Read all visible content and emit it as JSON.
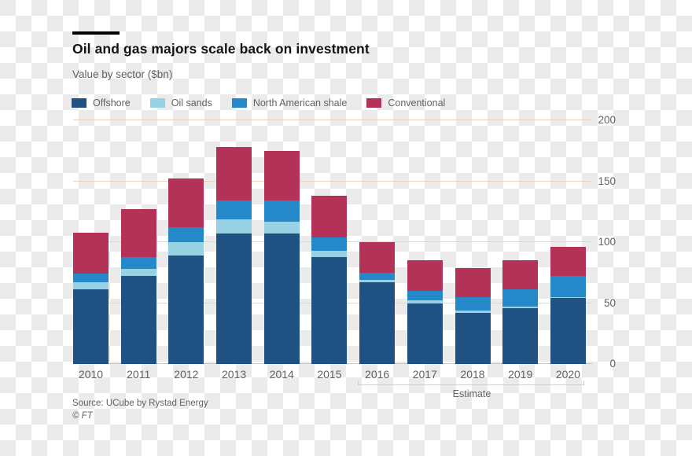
{
  "chart_data": {
    "type": "bar",
    "stacked": true,
    "title": "Oil and gas majors scale back on investment",
    "subtitle": "Value by sector ($bn)",
    "categories": [
      "2010",
      "2011",
      "2012",
      "2013",
      "2014",
      "2015",
      "2016",
      "2017",
      "2018",
      "2019",
      "2020"
    ],
    "series": [
      {
        "name": "Offshore",
        "color": "#1f5183",
        "values": [
          61,
          72,
          89,
          107,
          107,
          88,
          67,
          50,
          42,
          46,
          54
        ]
      },
      {
        "name": "Oil sands",
        "color": "#97d2e4",
        "values": [
          6,
          6,
          11,
          12,
          10,
          5,
          2,
          2,
          2,
          1,
          1
        ]
      },
      {
        "name": "North American shale",
        "color": "#2589c9",
        "values": [
          7,
          10,
          12,
          15,
          17,
          11,
          6,
          8,
          11,
          14,
          17
        ]
      },
      {
        "name": "Conventional",
        "color": "#b43158",
        "values": [
          34,
          39,
          40,
          44,
          41,
          34,
          25,
          25,
          24,
          24,
          24
        ]
      }
    ],
    "ylim": [
      0,
      200
    ],
    "yticks": [
      0,
      50,
      100,
      150,
      200
    ],
    "yaxis_side": "right",
    "grid": true,
    "legend_position": "top",
    "annotation": {
      "label": "Estimate",
      "start_category": "2016",
      "end_category": "2020"
    }
  },
  "footer": {
    "source": "Source: UCube by Rystad Energy",
    "credit": "© FT"
  }
}
